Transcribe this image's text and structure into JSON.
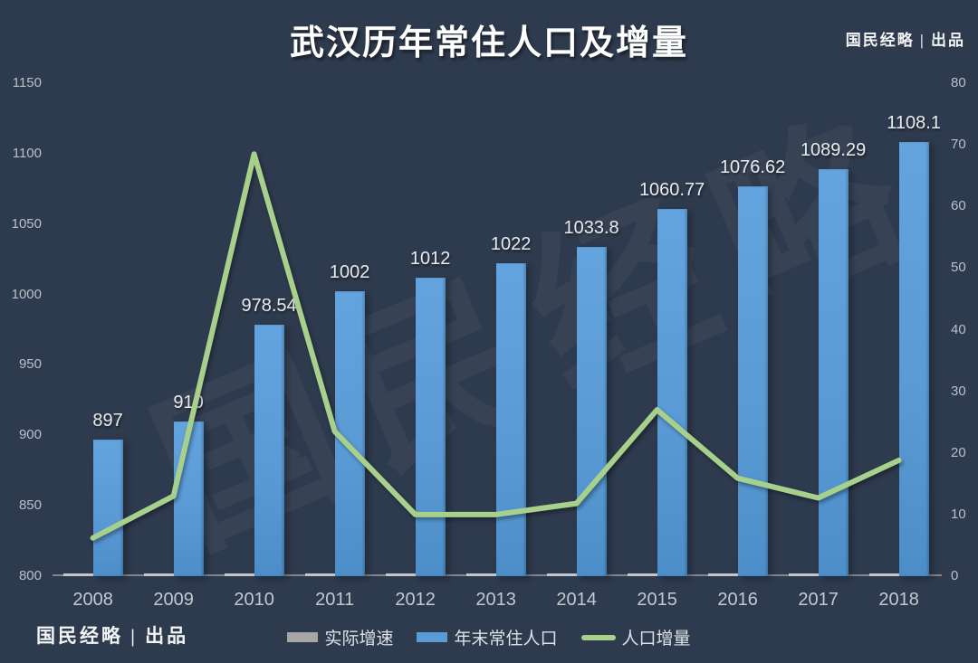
{
  "page": {
    "background": "#2e3a4d"
  },
  "header": {
    "title": "武汉历年常住人口及增量",
    "brand": "国民经略 | 出品"
  },
  "footer": {
    "brand": "国民经略 | 出品"
  },
  "watermark": {
    "text": "国民经略"
  },
  "colors": {
    "background": "#2e3a4d",
    "bar_blue": "#5b9bd5",
    "line_green": "#a8d08d",
    "bar_gray": "#a6a6a6",
    "axis_text": "#b9c0c9",
    "data_label_text": "#e8ebef",
    "title_text": "#ffffff"
  },
  "legend": {
    "items": [
      {
        "label": "实际增速",
        "type": "bar",
        "color": "#a6a6a6"
      },
      {
        "label": "年末常住人口",
        "type": "bar",
        "color": "#5b9bd5"
      },
      {
        "label": "人口增量",
        "type": "line",
        "color": "#a8d08d"
      }
    ]
  },
  "chart_data": {
    "type": "combo",
    "title": "武汉历年常住人口及增量",
    "categories": [
      "2008",
      "2009",
      "2010",
      "2011",
      "2012",
      "2013",
      "2014",
      "2015",
      "2016",
      "2017",
      "2018"
    ],
    "series": [
      {
        "name": "实际增速",
        "type": "bar",
        "axis": "right",
        "color": "#a6a6a6",
        "values": [
          0.5,
          0.5,
          0.5,
          0.5,
          0.5,
          0.5,
          0.5,
          0.5,
          0.5,
          0.5,
          0.5
        ],
        "note": "rendered nearly flat at baseline"
      },
      {
        "name": "年末常住人口",
        "type": "bar",
        "axis": "left",
        "color": "#5b9bd5",
        "values": [
          897,
          910,
          978.54,
          1002,
          1012,
          1022,
          1033.8,
          1060.77,
          1076.62,
          1089.29,
          1108.1
        ],
        "labels": [
          "897",
          "910",
          "978.54",
          "1002",
          "1012",
          "1022",
          "1033.8",
          "1060.77",
          "1076.62",
          "1089.29",
          "1108.1"
        ]
      },
      {
        "name": "人口增量",
        "type": "line",
        "axis": "right",
        "color": "#a8d08d",
        "values": [
          6.2,
          13,
          68.5,
          23.5,
          10,
          10,
          11.8,
          27,
          15.9,
          12.7,
          18.8
        ]
      }
    ],
    "left_axis": {
      "min": 800,
      "max": 1150,
      "ticks": [
        800,
        850,
        900,
        950,
        1000,
        1050,
        1100,
        1150
      ]
    },
    "right_axis": {
      "min": 0,
      "max": 80,
      "ticks": [
        0,
        10,
        20,
        30,
        40,
        50,
        60,
        70,
        80
      ]
    },
    "grid": false,
    "legend_position": "bottom"
  }
}
